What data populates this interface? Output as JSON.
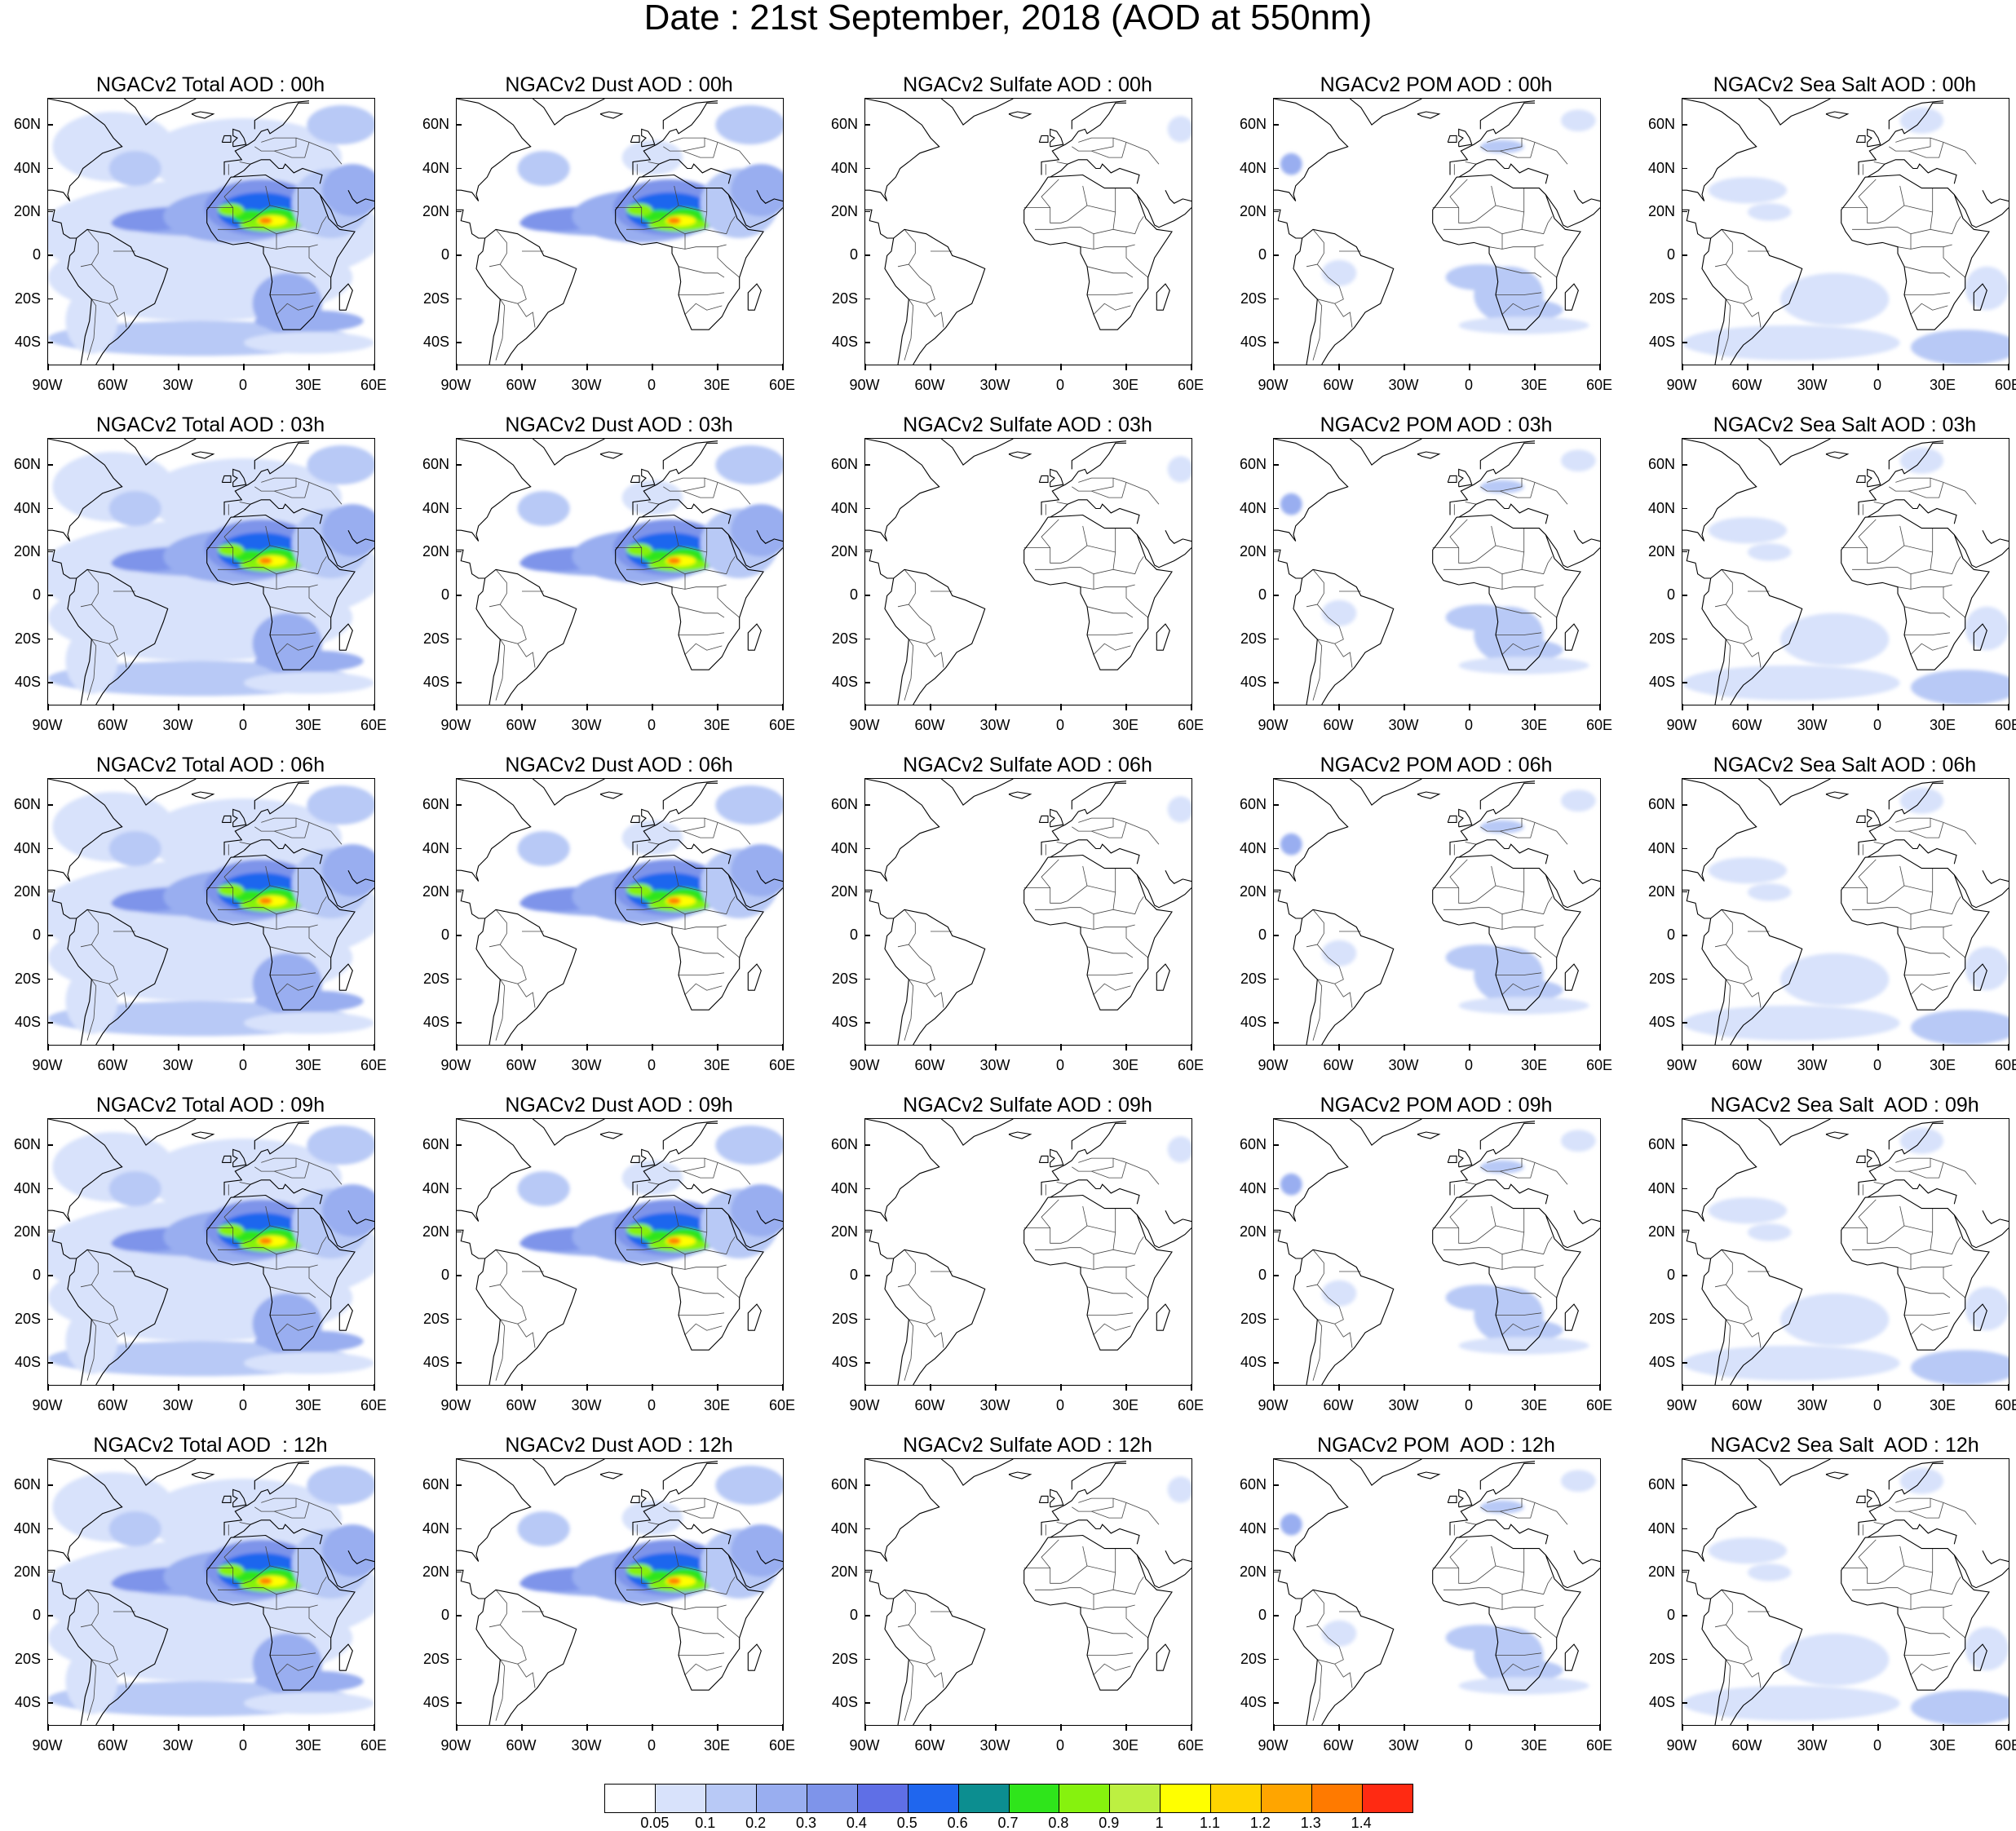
{
  "title": "Date : 21st September, 2018 (AOD at 550nm)",
  "axes": {
    "lat_labels": [
      "60N",
      "40N",
      "20N",
      "0",
      "20S",
      "40S"
    ],
    "lon_labels": [
      "90W",
      "60W",
      "30W",
      "0",
      "30E",
      "60E"
    ]
  },
  "colorbar": {
    "colors": [
      "#ffffff",
      "#d8e2fb",
      "#b8c9f6",
      "#99aef0",
      "#7e94ea",
      "#5f6fe6",
      "#1f66ee",
      "#0c8e90",
      "#2fe51b",
      "#86f20e",
      "#bdf041",
      "#ffff00",
      "#ffd400",
      "#ffa500",
      "#ff7a00",
      "#ff2a12"
    ],
    "labels": [
      "0.05",
      "0.1",
      "0.2",
      "0.3",
      "0.4",
      "0.5",
      "0.6",
      "0.7",
      "0.8",
      "0.9",
      "1",
      "1.1",
      "1.2",
      "1.3",
      "1.4"
    ]
  },
  "species": [
    "Total",
    "Dust",
    "Sulfate",
    "POM",
    "Sea Salt"
  ],
  "panels": [
    {
      "title": "NGACv2 Total AOD : 00h",
      "species": "Total",
      "hour": "00h"
    },
    {
      "title": "NGACv2 Dust AOD : 00h",
      "species": "Dust",
      "hour": "00h"
    },
    {
      "title": "NGACv2 Sulfate AOD : 00h",
      "species": "Sulfate",
      "hour": "00h"
    },
    {
      "title": "NGACv2 POM AOD : 00h",
      "species": "POM",
      "hour": "00h"
    },
    {
      "title": "NGACv2 Sea Salt AOD : 00h",
      "species": "Sea Salt",
      "hour": "00h"
    },
    {
      "title": "NGACv2 Total AOD : 03h",
      "species": "Total",
      "hour": "03h"
    },
    {
      "title": "NGACv2 Dust AOD : 03h",
      "species": "Dust",
      "hour": "03h"
    },
    {
      "title": "NGACv2 Sulfate AOD : 03h",
      "species": "Sulfate",
      "hour": "03h"
    },
    {
      "title": "NGACv2 POM AOD : 03h",
      "species": "POM",
      "hour": "03h"
    },
    {
      "title": "NGACv2 Sea Salt AOD : 03h",
      "species": "Sea Salt",
      "hour": "03h"
    },
    {
      "title": "NGACv2 Total AOD : 06h",
      "species": "Total",
      "hour": "06h"
    },
    {
      "title": "NGACv2 Dust AOD : 06h",
      "species": "Dust",
      "hour": "06h"
    },
    {
      "title": "NGACv2 Sulfate AOD : 06h",
      "species": "Sulfate",
      "hour": "06h"
    },
    {
      "title": "NGACv2 POM AOD : 06h",
      "species": "POM",
      "hour": "06h"
    },
    {
      "title": "NGACv2 Sea Salt AOD : 06h",
      "species": "Sea Salt",
      "hour": "06h"
    },
    {
      "title": "NGACv2 Total AOD : 09h",
      "species": "Total",
      "hour": "09h"
    },
    {
      "title": "NGACv2 Dust AOD : 09h",
      "species": "Dust",
      "hour": "09h"
    },
    {
      "title": "NGACv2 Sulfate AOD : 09h",
      "species": "Sulfate",
      "hour": "09h"
    },
    {
      "title": "NGACv2 POM AOD : 09h",
      "species": "POM",
      "hour": "09h"
    },
    {
      "title": "NGACv2 Sea Salt  AOD : 09h",
      "species": "Sea Salt",
      "hour": "09h"
    },
    {
      "title": "NGACv2 Total AOD  : 12h",
      "species": "Total",
      "hour": "12h"
    },
    {
      "title": "NGACv2 Dust AOD : 12h",
      "species": "Dust",
      "hour": "12h"
    },
    {
      "title": "NGACv2 Sulfate AOD : 12h",
      "species": "Sulfate",
      "hour": "12h"
    },
    {
      "title": "NGACv2 POM  AOD : 12h",
      "species": "POM",
      "hour": "12h"
    },
    {
      "title": "NGACv2 Sea Salt  AOD : 12h",
      "species": "Sea Salt",
      "hour": "12h"
    }
  ]
}
